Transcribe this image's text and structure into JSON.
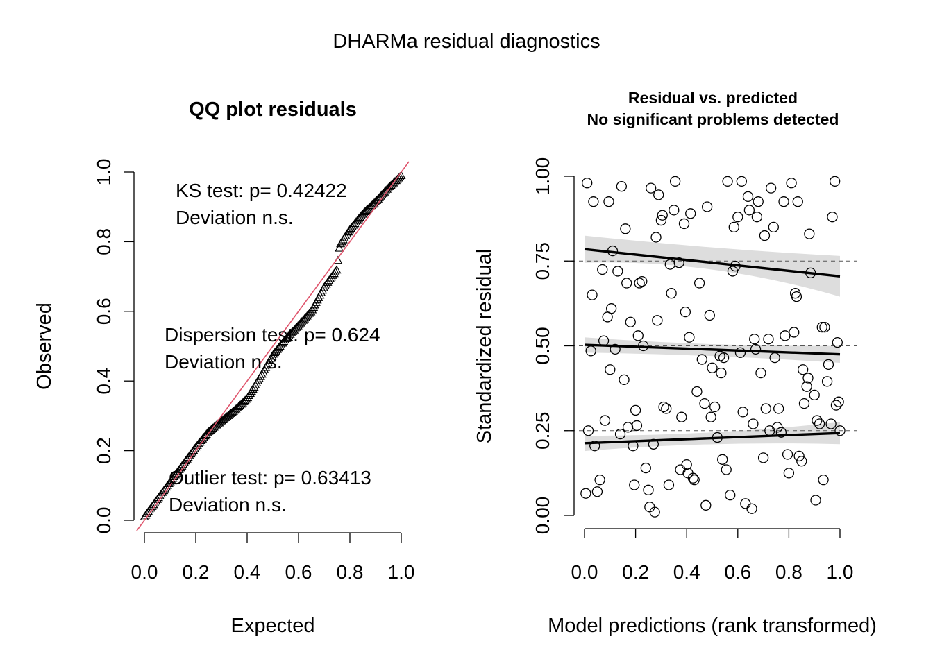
{
  "page": {
    "title": "DHARMa residual diagnostics"
  },
  "chart_data": [
    {
      "type": "scatter",
      "title": "QQ plot residuals",
      "xlabel": "Expected",
      "ylabel": "Observed",
      "xlim": [
        0,
        1
      ],
      "ylim": [
        0,
        1
      ],
      "x_ticks": [
        "0.0",
        "0.2",
        "0.4",
        "0.6",
        "0.8",
        "1.0"
      ],
      "y_ticks": [
        "0.0",
        "0.2",
        "0.4",
        "0.6",
        "0.8",
        "1.0"
      ],
      "grid": false,
      "marker": "triangle",
      "reference_line": {
        "from": [
          0,
          0
        ],
        "to": [
          1,
          1
        ],
        "color": "#DF536B"
      },
      "annotations": [
        {
          "line1": "KS test: p= 0.42422",
          "line2": "Deviation  n.s."
        },
        {
          "line1": "Dispersion test: p= 0.624",
          "line2": "Deviation  n.s."
        },
        {
          "line1": "Outlier test: p= 0.63413",
          "line2": "Deviation  n.s."
        }
      ],
      "qq_quantiles": {
        "expected": [
          0.0,
          0.05,
          0.1,
          0.15,
          0.2,
          0.25,
          0.3,
          0.35,
          0.4,
          0.45,
          0.5,
          0.55,
          0.6,
          0.65,
          0.7,
          0.75,
          0.76,
          0.8,
          0.85,
          0.9,
          0.95,
          1.0
        ],
        "observed": [
          0.01,
          0.06,
          0.11,
          0.16,
          0.21,
          0.255,
          0.285,
          0.315,
          0.35,
          0.41,
          0.475,
          0.52,
          0.56,
          0.6,
          0.67,
          0.72,
          0.79,
          0.835,
          0.88,
          0.915,
          0.955,
          0.99
        ]
      },
      "n_points": 200
    },
    {
      "type": "scatter",
      "title_line1": "Residual vs. predicted",
      "title_line2": "No significant problems detected",
      "xlabel": "Model predictions (rank transformed)",
      "ylabel": "Standardized residual",
      "xlim": [
        0,
        1
      ],
      "ylim": [
        0,
        1
      ],
      "x_ticks": [
        "0.0",
        "0.2",
        "0.4",
        "0.6",
        "0.8",
        "1.0"
      ],
      "y_ticks": [
        "0.00",
        "0.25",
        "0.50",
        "0.75",
        "1.00"
      ],
      "reference_lines_y": [
        0.25,
        0.5,
        0.75
      ],
      "marker": "open-circle",
      "quantile_fits": [
        {
          "quantile": 0.25,
          "y_at_0": 0.213,
          "y_at_1": 0.243,
          "band_at_0": [
            0.19,
            0.235
          ],
          "band_at_0_5": [
            0.21,
            0.245
          ],
          "band_at_1": [
            0.21,
            0.275
          ]
        },
        {
          "quantile": 0.5,
          "y_at_0": 0.503,
          "y_at_1": 0.475,
          "band_at_0": [
            0.48,
            0.525
          ],
          "band_at_0_5": [
            0.47,
            0.505
          ],
          "band_at_1": [
            0.45,
            0.5
          ]
        },
        {
          "quantile": 0.75,
          "y_at_0": 0.785,
          "y_at_1": 0.705,
          "band_at_0": [
            0.745,
            0.825
          ],
          "band_at_0_5": [
            0.725,
            0.79
          ],
          "band_at_1": [
            0.645,
            0.765
          ]
        }
      ],
      "points": [
        [
          0.005,
          0.065
        ],
        [
          0.01,
          0.98
        ],
        [
          0.015,
          0.25
        ],
        [
          0.025,
          0.485
        ],
        [
          0.03,
          0.65
        ],
        [
          0.035,
          0.925
        ],
        [
          0.04,
          0.205
        ],
        [
          0.05,
          0.07
        ],
        [
          0.06,
          0.105
        ],
        [
          0.07,
          0.725
        ],
        [
          0.075,
          0.515
        ],
        [
          0.08,
          0.28
        ],
        [
          0.09,
          0.585
        ],
        [
          0.095,
          0.925
        ],
        [
          0.1,
          0.43
        ],
        [
          0.105,
          0.61
        ],
        [
          0.11,
          0.78
        ],
        [
          0.12,
          0.49
        ],
        [
          0.13,
          0.72
        ],
        [
          0.14,
          0.24
        ],
        [
          0.145,
          0.97
        ],
        [
          0.155,
          0.4
        ],
        [
          0.16,
          0.845
        ],
        [
          0.165,
          0.685
        ],
        [
          0.17,
          0.26
        ],
        [
          0.18,
          0.57
        ],
        [
          0.19,
          0.205
        ],
        [
          0.195,
          0.09
        ],
        [
          0.2,
          0.31
        ],
        [
          0.205,
          0.265
        ],
        [
          0.21,
          0.53
        ],
        [
          0.215,
          0.685
        ],
        [
          0.225,
          0.69
        ],
        [
          0.23,
          0.5
        ],
        [
          0.24,
          0.14
        ],
        [
          0.25,
          0.075
        ],
        [
          0.255,
          0.025
        ],
        [
          0.26,
          0.965
        ],
        [
          0.27,
          0.21
        ],
        [
          0.275,
          0.01
        ],
        [
          0.28,
          0.82
        ],
        [
          0.285,
          0.575
        ],
        [
          0.29,
          0.945
        ],
        [
          0.3,
          0.87
        ],
        [
          0.305,
          0.885
        ],
        [
          0.31,
          0.32
        ],
        [
          0.32,
          0.315
        ],
        [
          0.33,
          0.09
        ],
        [
          0.335,
          0.74
        ],
        [
          0.34,
          0.655
        ],
        [
          0.35,
          0.9
        ],
        [
          0.355,
          0.985
        ],
        [
          0.37,
          0.745
        ],
        [
          0.375,
          0.135
        ],
        [
          0.38,
          0.29
        ],
        [
          0.39,
          0.86
        ],
        [
          0.395,
          0.6
        ],
        [
          0.4,
          0.15
        ],
        [
          0.405,
          0.125
        ],
        [
          0.41,
          0.525
        ],
        [
          0.415,
          0.89
        ],
        [
          0.425,
          0.11
        ],
        [
          0.43,
          0.105
        ],
        [
          0.44,
          0.365
        ],
        [
          0.45,
          0.685
        ],
        [
          0.46,
          0.46
        ],
        [
          0.47,
          0.33
        ],
        [
          0.475,
          0.03
        ],
        [
          0.48,
          0.91
        ],
        [
          0.49,
          0.59
        ],
        [
          0.495,
          0.29
        ],
        [
          0.5,
          0.435
        ],
        [
          0.51,
          0.32
        ],
        [
          0.52,
          0.23
        ],
        [
          0.53,
          0.47
        ],
        [
          0.535,
          0.42
        ],
        [
          0.54,
          0.165
        ],
        [
          0.545,
          0.465
        ],
        [
          0.555,
          0.135
        ],
        [
          0.56,
          0.985
        ],
        [
          0.57,
          0.06
        ],
        [
          0.58,
          0.72
        ],
        [
          0.585,
          0.85
        ],
        [
          0.59,
          0.735
        ],
        [
          0.6,
          0.88
        ],
        [
          0.61,
          0.48
        ],
        [
          0.615,
          0.985
        ],
        [
          0.62,
          0.305
        ],
        [
          0.63,
          0.035
        ],
        [
          0.64,
          0.94
        ],
        [
          0.645,
          0.9
        ],
        [
          0.655,
          0.02
        ],
        [
          0.66,
          0.27
        ],
        [
          0.665,
          0.52
        ],
        [
          0.67,
          0.49
        ],
        [
          0.675,
          0.88
        ],
        [
          0.68,
          0.925
        ],
        [
          0.69,
          0.42
        ],
        [
          0.7,
          0.17
        ],
        [
          0.705,
          0.825
        ],
        [
          0.71,
          0.315
        ],
        [
          0.72,
          0.52
        ],
        [
          0.725,
          0.25
        ],
        [
          0.73,
          0.965
        ],
        [
          0.74,
          0.85
        ],
        [
          0.745,
          0.465
        ],
        [
          0.755,
          0.26
        ],
        [
          0.76,
          0.315
        ],
        [
          0.77,
          0.245
        ],
        [
          0.78,
          0.925
        ],
        [
          0.785,
          0.53
        ],
        [
          0.795,
          0.18
        ],
        [
          0.8,
          0.125
        ],
        [
          0.81,
          0.98
        ],
        [
          0.82,
          0.54
        ],
        [
          0.825,
          0.655
        ],
        [
          0.83,
          0.645
        ],
        [
          0.835,
          0.925
        ],
        [
          0.84,
          0.175
        ],
        [
          0.85,
          0.16
        ],
        [
          0.855,
          0.43
        ],
        [
          0.86,
          0.33
        ],
        [
          0.87,
          0.38
        ],
        [
          0.875,
          0.405
        ],
        [
          0.88,
          0.83
        ],
        [
          0.885,
          0.715
        ],
        [
          0.9,
          0.355
        ],
        [
          0.905,
          0.045
        ],
        [
          0.91,
          0.28
        ],
        [
          0.92,
          0.27
        ],
        [
          0.93,
          0.555
        ],
        [
          0.935,
          0.105
        ],
        [
          0.94,
          0.555
        ],
        [
          0.95,
          0.395
        ],
        [
          0.955,
          0.445
        ],
        [
          0.965,
          0.27
        ],
        [
          0.97,
          0.88
        ],
        [
          0.98,
          0.985
        ],
        [
          0.985,
          0.325
        ],
        [
          0.99,
          0.51
        ],
        [
          0.995,
          0.335
        ],
        [
          1.0,
          0.25
        ]
      ]
    }
  ]
}
